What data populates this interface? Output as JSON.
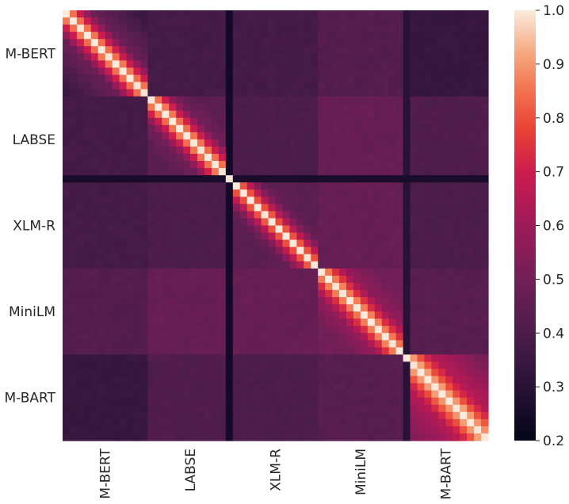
{
  "chart_data": {
    "type": "heatmap",
    "title": "",
    "xlabel": "",
    "ylabel": "",
    "models": [
      "M-BERT",
      "LABSE",
      "XLM-R",
      "MiniLM",
      "M-BART"
    ],
    "cells_per_model": 12,
    "description_free_block_means": [
      [
        0.33,
        0.38,
        0.38,
        0.42,
        0.34
      ],
      [
        0.38,
        0.44,
        0.4,
        0.47,
        0.41
      ],
      [
        0.38,
        0.4,
        0.44,
        0.47,
        0.4
      ],
      [
        0.42,
        0.47,
        0.47,
        0.5,
        0.43
      ],
      [
        0.34,
        0.41,
        0.4,
        0.43,
        0.4
      ]
    ],
    "diagonal_block_gradient": {
      "M-BERT": [
        1.0,
        0.85,
        0.7,
        0.58,
        0.48
      ],
      "LABSE": [
        1.0,
        0.85,
        0.7,
        0.58,
        0.5
      ],
      "XLM-R": [
        1.0,
        0.8,
        0.66,
        0.55,
        0.47
      ],
      "MiniLM": [
        1.0,
        0.86,
        0.74,
        0.64,
        0.57
      ],
      "M-BART": [
        1.0,
        0.9,
        0.8,
        0.72,
        0.65
      ]
    },
    "dark_stripes": [
      {
        "axis": "column",
        "model": "LABSE",
        "index": 11,
        "value": 0.24
      },
      {
        "axis": "row",
        "model": "LABSE",
        "index": 11,
        "value": 0.26
      },
      {
        "axis": "column",
        "model": "M-BART",
        "index": 0,
        "value": 0.3
      }
    ],
    "colorbar": {
      "vmin": 0.2,
      "vmax": 1.0,
      "ticks": [
        "0.2",
        "0.3",
        "0.4",
        "0.5",
        "0.6",
        "0.7",
        "0.8",
        "0.9",
        "1.0"
      ]
    },
    "colormap": "rocket",
    "grid": false,
    "legend": "colorbar-right"
  }
}
